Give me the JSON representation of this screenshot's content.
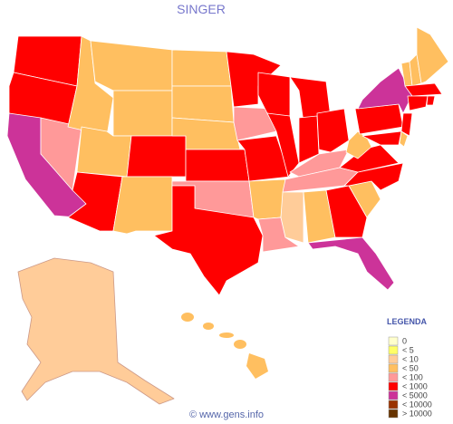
{
  "title": "SINGER",
  "legend": {
    "title": "LEGENDA",
    "items": [
      {
        "label": "0",
        "color": "#ffffcc"
      },
      {
        "label": "< 5",
        "color": "#ffff66"
      },
      {
        "label": "< 10",
        "color": "#ffcc99"
      },
      {
        "label": "< 50",
        "color": "#ffbf60"
      },
      {
        "label": "< 100",
        "color": "#ff9999"
      },
      {
        "label": "< 1000",
        "color": "#ff0000"
      },
      {
        "label": "< 5000",
        "color": "#cc3399"
      },
      {
        "label": "< 10000",
        "color": "#993300"
      },
      {
        "label": "> 10000",
        "color": "#663300"
      }
    ]
  },
  "footer": "© www.gens.info"
}
